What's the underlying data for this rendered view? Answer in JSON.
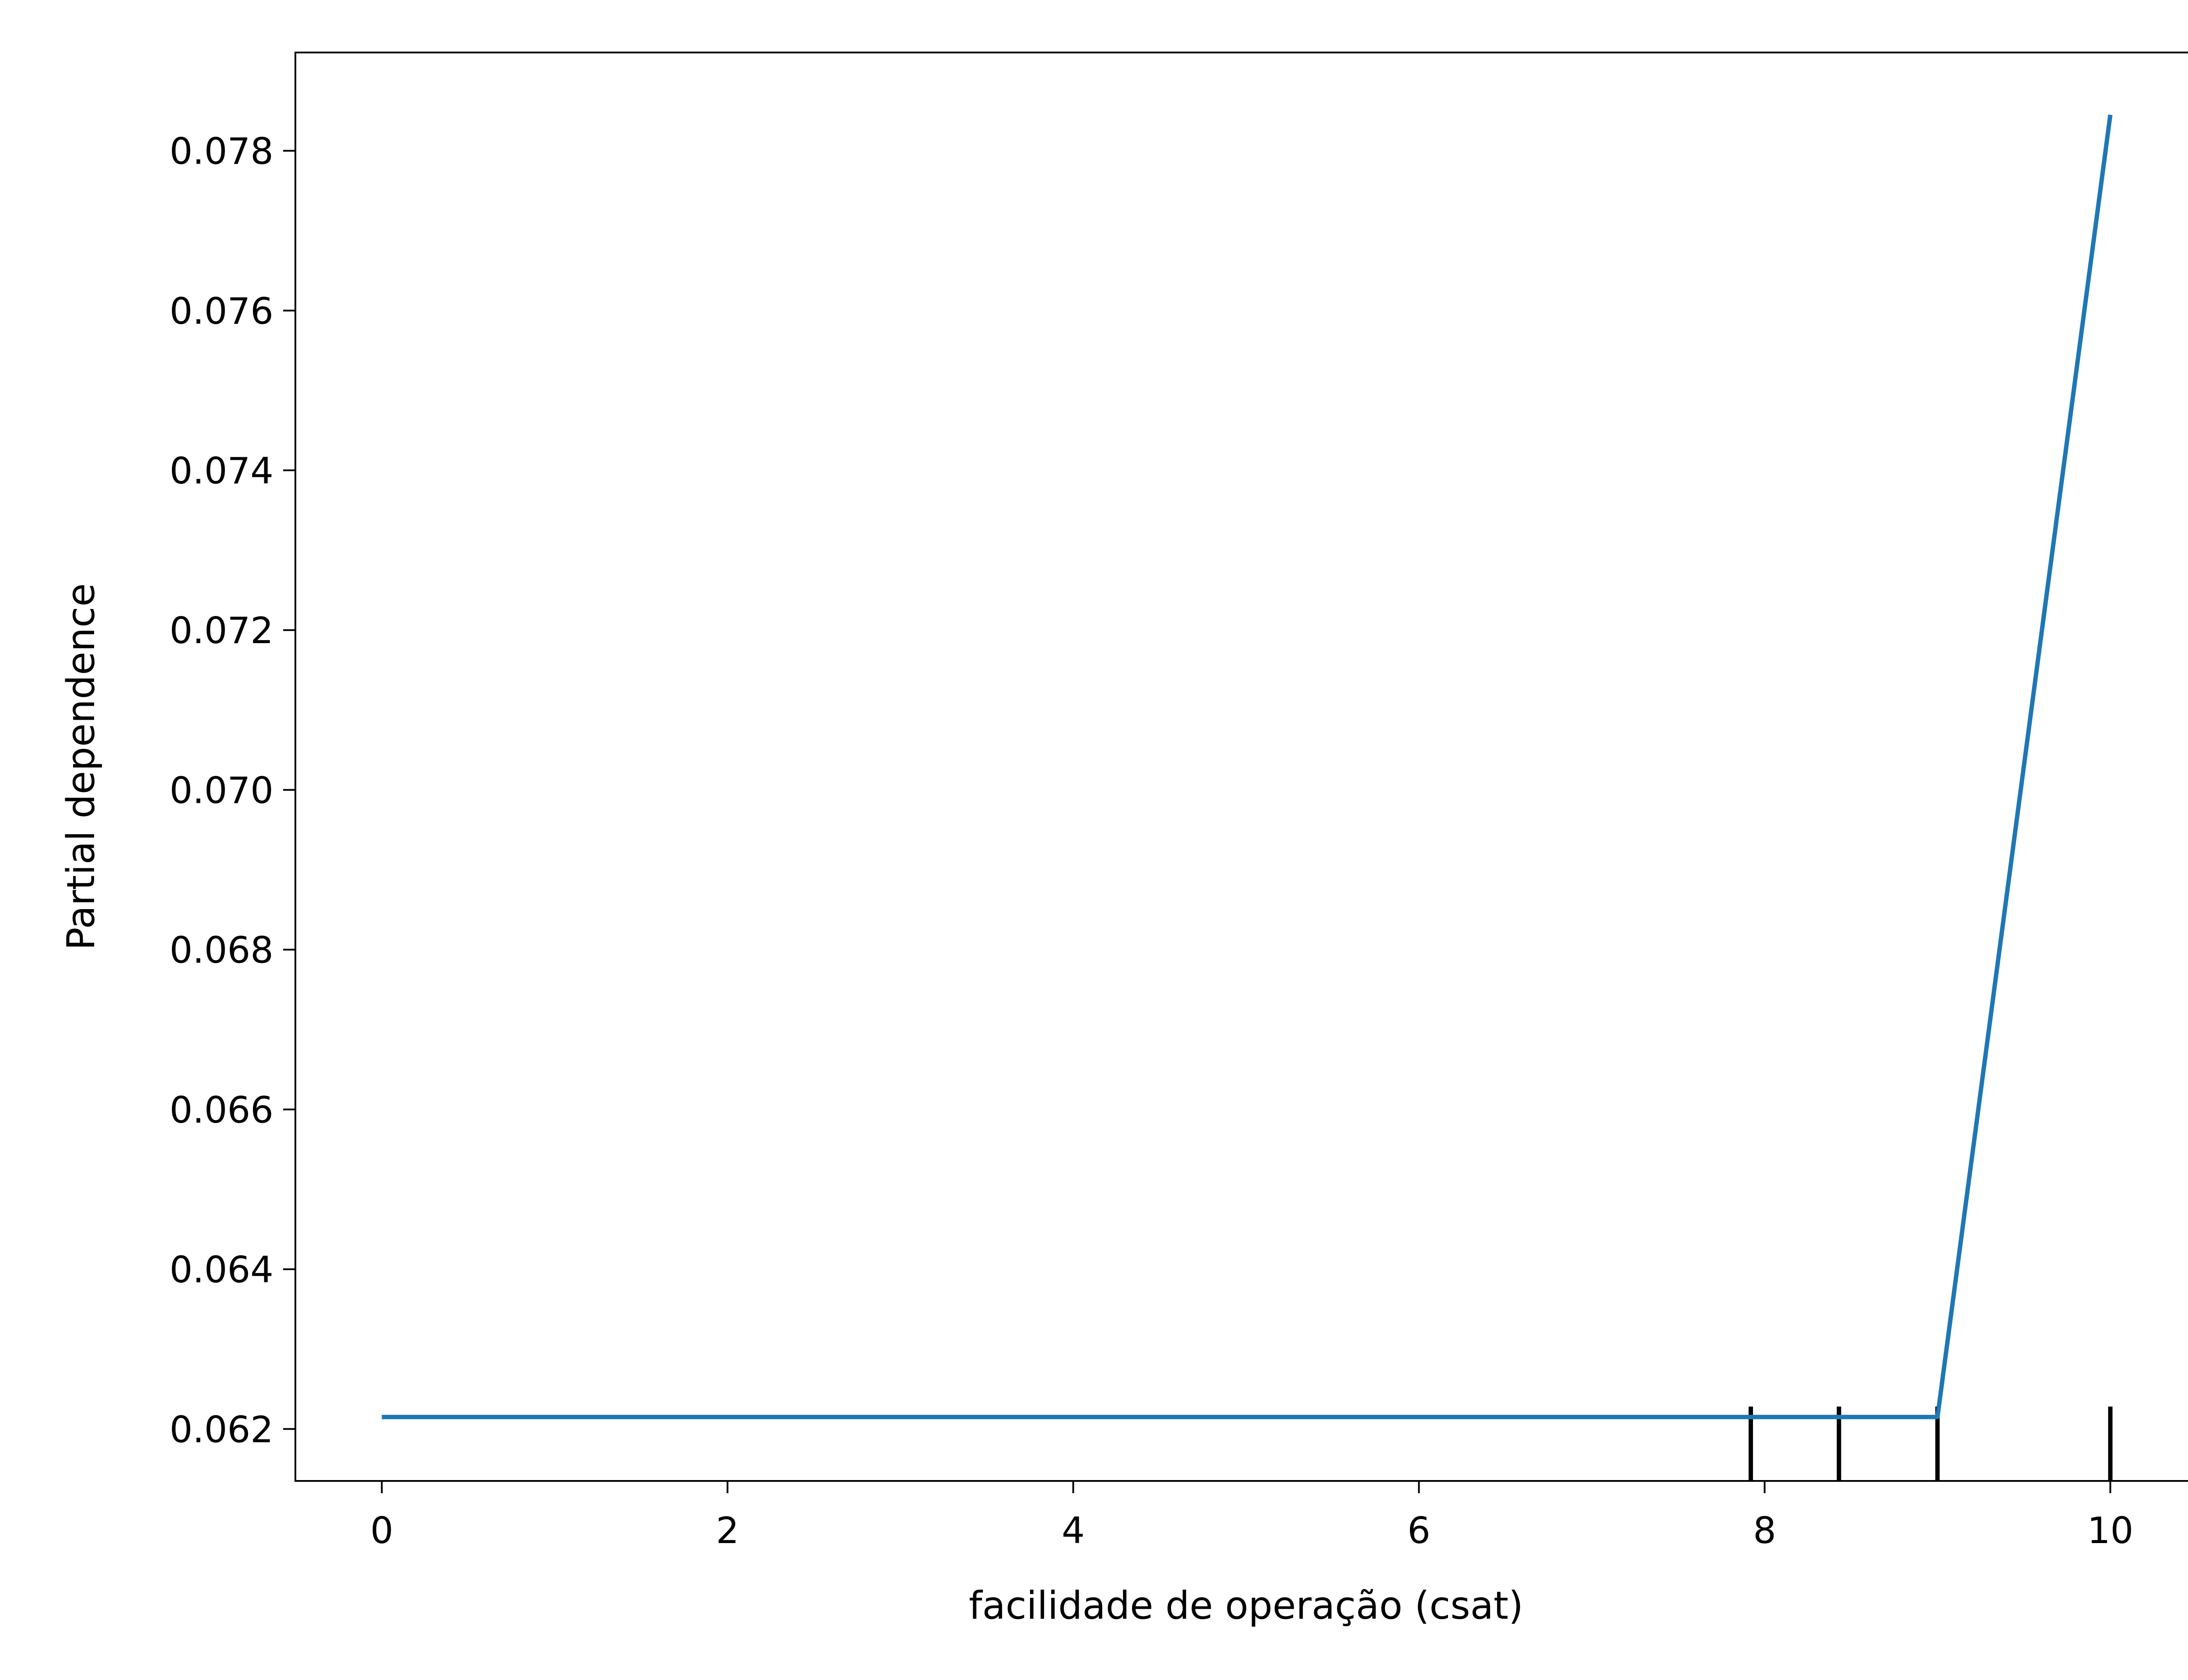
{
  "chart_data": {
    "type": "line",
    "title": "",
    "xlabel": "facilidade de operação (csat)",
    "ylabel": "Partial dependence",
    "xlim": [
      -0.5,
      10.5
    ],
    "ylim": [
      0.06135,
      0.07923
    ],
    "x_ticks": [
      {
        "value": 0,
        "label": "0"
      },
      {
        "value": 2,
        "label": "2"
      },
      {
        "value": 4,
        "label": "4"
      },
      {
        "value": 6,
        "label": "6"
      },
      {
        "value": 8,
        "label": "8"
      },
      {
        "value": 10,
        "label": "10"
      }
    ],
    "y_ticks": [
      {
        "value": 0.062,
        "label": "0.062"
      },
      {
        "value": 0.064,
        "label": "0.064"
      },
      {
        "value": 0.066,
        "label": "0.066"
      },
      {
        "value": 0.068,
        "label": "0.068"
      },
      {
        "value": 0.07,
        "label": "0.070"
      },
      {
        "value": 0.072,
        "label": "0.072"
      },
      {
        "value": 0.074,
        "label": "0.074"
      },
      {
        "value": 0.076,
        "label": "0.076"
      },
      {
        "value": 0.078,
        "label": "0.078"
      }
    ],
    "series": [
      {
        "color": "#1f77b4",
        "x": [
          0,
          9,
          10
        ],
        "y": [
          0.06215,
          0.06215,
          0.07845
        ]
      }
    ],
    "deciles": [
      7.92,
      8.43,
      9.0,
      10.0
    ],
    "grid": false
  }
}
